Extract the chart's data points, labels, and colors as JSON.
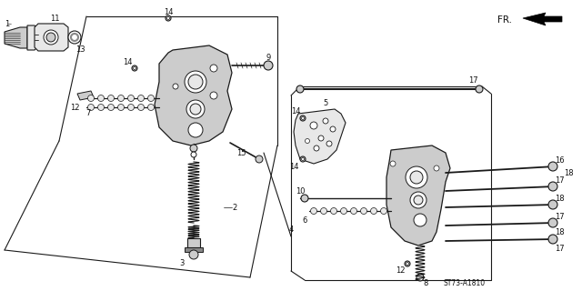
{
  "background_color": "#ffffff",
  "diagram_code": "ST73-A1810",
  "line_color": "#1a1a1a",
  "text_color": "#111111",
  "gray_fill": "#cccccc",
  "dark_gray": "#888888",
  "light_gray": "#e8e8e8"
}
